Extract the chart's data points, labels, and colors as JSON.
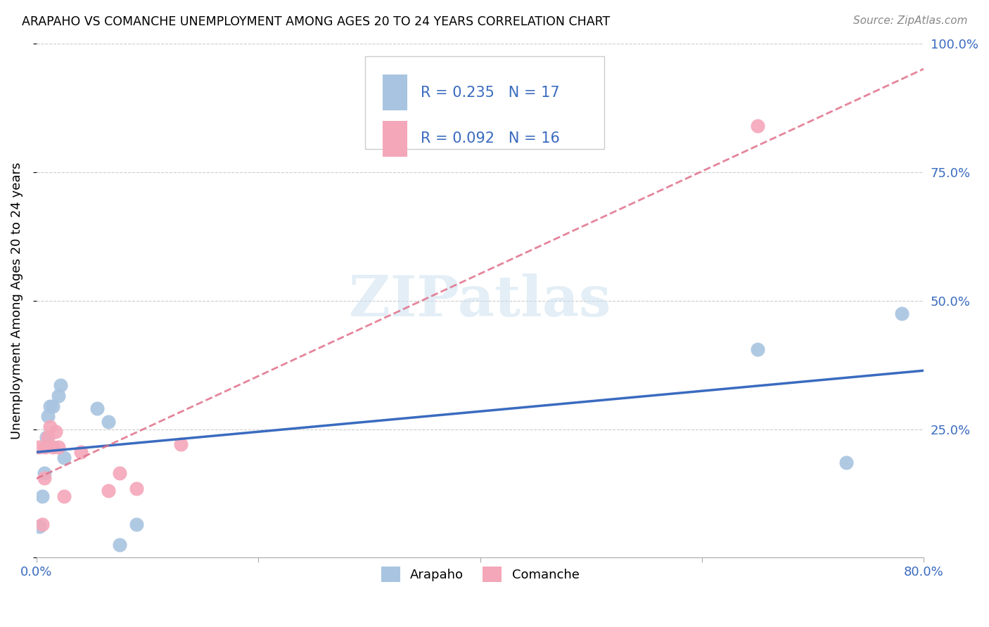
{
  "title": "ARAPAHO VS COMANCHE UNEMPLOYMENT AMONG AGES 20 TO 24 YEARS CORRELATION CHART",
  "source": "Source: ZipAtlas.com",
  "ylabel": "Unemployment Among Ages 20 to 24 years",
  "xlim": [
    0.0,
    0.8
  ],
  "ylim": [
    0.0,
    1.0
  ],
  "xticks": [
    0.0,
    0.2,
    0.4,
    0.6,
    0.8
  ],
  "xtick_labels": [
    "0.0%",
    "",
    "",
    "",
    "80.0%"
  ],
  "ytick_labels": [
    "",
    "25.0%",
    "50.0%",
    "75.0%",
    "100.0%"
  ],
  "yticks": [
    0.0,
    0.25,
    0.5,
    0.75,
    1.0
  ],
  "arapaho_color": "#a8c4e0",
  "comanche_color": "#f4a7b9",
  "arapaho_line_color": "#3a6bbf",
  "comanche_trendline_color": "#e0708a",
  "watermark_color": "#cce0f0",
  "legend_color": "#3a6bbf",
  "arapaho_R": 0.235,
  "arapaho_N": 17,
  "comanche_R": 0.092,
  "comanche_N": 16,
  "arapaho_x": [
    0.003,
    0.005,
    0.007,
    0.009,
    0.01,
    0.012,
    0.015,
    0.02,
    0.022,
    0.025,
    0.055,
    0.065,
    0.075,
    0.09,
    0.65,
    0.73,
    0.78
  ],
  "arapaho_y": [
    0.06,
    0.12,
    0.165,
    0.235,
    0.275,
    0.295,
    0.295,
    0.315,
    0.335,
    0.195,
    0.29,
    0.265,
    0.025,
    0.065,
    0.405,
    0.185,
    0.475
  ],
  "comanche_x": [
    0.002,
    0.005,
    0.007,
    0.008,
    0.01,
    0.012,
    0.015,
    0.017,
    0.02,
    0.025,
    0.04,
    0.065,
    0.075,
    0.09,
    0.13,
    0.65
  ],
  "comanche_y": [
    0.215,
    0.065,
    0.155,
    0.215,
    0.235,
    0.255,
    0.215,
    0.245,
    0.215,
    0.12,
    0.205,
    0.13,
    0.165,
    0.135,
    0.22,
    0.84
  ]
}
